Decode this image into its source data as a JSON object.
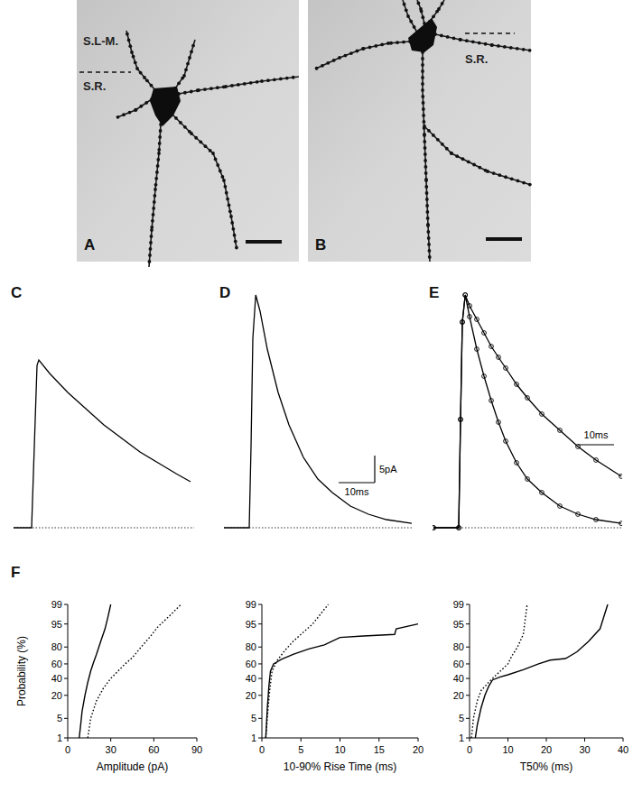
{
  "micrographs": [
    {
      "label": "A",
      "layers": [
        "S.L-M.",
        "S.R."
      ]
    },
    {
      "label": "B",
      "layers": [
        "S.R."
      ]
    }
  ],
  "chart_data": [
    {
      "type": "line",
      "title": "C",
      "tick_labels": false,
      "xlim": [
        0,
        50
      ],
      "ylim": [
        -2,
        45
      ],
      "x": [
        0,
        5,
        6,
        6.5,
        7,
        10,
        15,
        20,
        25,
        30,
        35,
        40,
        45,
        49
      ],
      "series": [
        {
          "color": "#000000",
          "line_style": "solid",
          "values": [
            0,
            0,
            20,
            30,
            31,
            28.5,
            25,
            22,
            19,
            16.5,
            14,
            12,
            10,
            8.5
          ]
        }
      ]
    },
    {
      "type": "line",
      "title": "D",
      "tick_labels": false,
      "xlim": [
        0,
        52
      ],
      "ylim": [
        -2,
        45
      ],
      "x": [
        0,
        7,
        7.5,
        8,
        8.8,
        10,
        12,
        15,
        18,
        22,
        26,
        30,
        35,
        40,
        45,
        52
      ],
      "series": [
        {
          "color": "#000000",
          "line_style": "solid",
          "values": [
            0,
            0,
            15,
            35,
            43,
            40,
            33,
            25,
            19,
            13,
            9,
            6.5,
            4,
            2.5,
            1.5,
            0.8
          ]
        }
      ],
      "scale_bars": [
        {
          "axis": "y",
          "value": 5,
          "label": "5pA"
        },
        {
          "axis": "x",
          "value": 10,
          "label": "10ms"
        }
      ]
    },
    {
      "type": "line",
      "title": "E",
      "tick_labels": false,
      "xlim": [
        0,
        52
      ],
      "ylim": [
        -2,
        45
      ],
      "x": [
        0,
        7,
        7.5,
        8,
        8.8,
        10,
        12,
        14,
        16,
        18,
        20,
        23,
        26,
        30,
        35,
        40,
        45,
        52
      ],
      "series": [
        {
          "color": "#000000",
          "line_style": "solid",
          "marker": "circle",
          "values": [
            0,
            0,
            20,
            38,
            43,
            39,
            33,
            28,
            23.5,
            19.5,
            16,
            12,
            9,
            6.5,
            4,
            2.5,
            1.5,
            0.8
          ]
        },
        {
          "color": "#000000",
          "line_style": "solid",
          "marker": "circle",
          "values": [
            0,
            0,
            20,
            38,
            43,
            41,
            38.5,
            36,
            33.5,
            31.5,
            29.5,
            26.5,
            24,
            21,
            18,
            15,
            12.5,
            9.5
          ]
        }
      ],
      "scale_bars": [
        {
          "axis": "x",
          "value": 10,
          "label": "10ms"
        }
      ]
    },
    {
      "type": "probability",
      "title": "F",
      "x_label": "Amplitude (pA)",
      "y_label": "Probability (%)",
      "xlim": [
        0,
        90
      ],
      "ylim": [
        1,
        99
      ],
      "xticks": [
        0,
        30,
        60,
        90
      ],
      "yticks": [
        1,
        5,
        20,
        40,
        60,
        80,
        95,
        99
      ],
      "series": [
        {
          "color": "#000000",
          "line_style": "solid",
          "x": [
            8,
            9,
            10,
            12,
            14,
            16,
            18,
            20,
            23,
            26,
            28,
            30
          ],
          "values": [
            1,
            3,
            8,
            20,
            35,
            50,
            62,
            72,
            85,
            93,
            97,
            99
          ]
        },
        {
          "color": "#000000",
          "line_style": "dotted",
          "x": [
            14,
            16,
            20,
            25,
            30,
            35,
            40,
            45,
            50,
            57,
            63,
            70,
            79
          ],
          "values": [
            1,
            5,
            15,
            28,
            40,
            50,
            60,
            68,
            78,
            88,
            94,
            97,
            99
          ]
        }
      ]
    },
    {
      "type": "probability",
      "x_label": "10-90% Rise Time (ms)",
      "xlim": [
        0,
        20
      ],
      "ylim": [
        1,
        99
      ],
      "xticks": [
        0,
        5,
        10,
        15,
        20
      ],
      "yticks": [
        1,
        5,
        20,
        40,
        60,
        80,
        95,
        99
      ],
      "series": [
        {
          "color": "#000000",
          "line_style": "solid",
          "x": [
            0.5,
            0.7,
            0.9,
            1.1,
            1.5,
            2.5,
            4,
            6,
            8,
            10,
            13,
            17,
            17.2,
            20
          ],
          "values": [
            1,
            10,
            30,
            50,
            60,
            66,
            72,
            78,
            82,
            88,
            89,
            90,
            93,
            95
          ]
        },
        {
          "color": "#000000",
          "line_style": "dotted",
          "x": [
            0.5,
            0.8,
            1,
            1.3,
            2,
            3,
            4,
            5,
            6.5,
            8.5
          ],
          "values": [
            1,
            10,
            25,
            50,
            65,
            77,
            85,
            90,
            95,
            99
          ]
        }
      ]
    },
    {
      "type": "probability",
      "x_label": "T50% (ms)",
      "xlim": [
        0,
        40
      ],
      "ylim": [
        1,
        99
      ],
      "xticks": [
        0,
        10,
        20,
        30,
        40
      ],
      "yticks": [
        1,
        5,
        20,
        40,
        60,
        80,
        95,
        99
      ],
      "series": [
        {
          "color": "#000000",
          "line_style": "solid",
          "x": [
            1.5,
            2,
            3,
            4,
            5,
            6,
            8,
            10,
            14,
            18,
            21,
            25,
            28,
            31,
            34,
            36
          ],
          "values": [
            1,
            3,
            10,
            20,
            30,
            38,
            42,
            45,
            52,
            60,
            65,
            67,
            75,
            85,
            93,
            99
          ]
        },
        {
          "color": "#000000",
          "line_style": "dotted",
          "x": [
            0.5,
            1,
            2,
            3,
            5,
            7,
            9,
            10,
            11,
            12.5,
            14,
            15
          ],
          "values": [
            1,
            5,
            15,
            25,
            35,
            45,
            55,
            60,
            70,
            80,
            90,
            99
          ]
        }
      ]
    }
  ]
}
